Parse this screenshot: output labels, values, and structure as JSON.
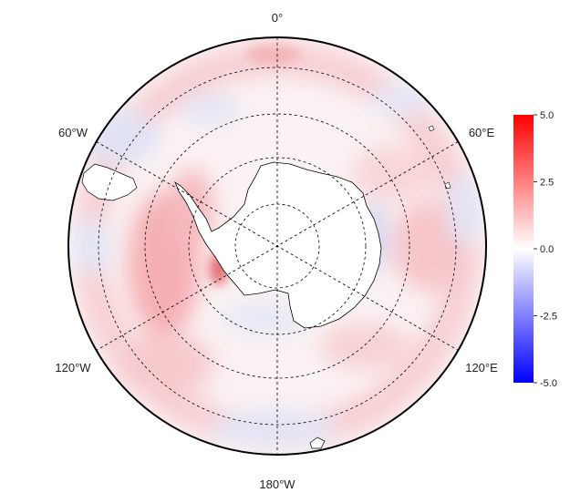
{
  "map": {
    "projection": "south-polar-stereographic",
    "longitude_labels": {
      "top": "0°",
      "upper_left": "60°W",
      "upper_right": "60°E",
      "lower_left": "120°W",
      "lower_right": "120°E",
      "bottom": "180°W"
    },
    "graticule": "dashed",
    "field_colors": {
      "positive": "#ff0000",
      "zero": "#ffffff",
      "negative": "#0000ff"
    }
  },
  "colorbar": {
    "min": -5.0,
    "max": 5.0,
    "ticks": [
      "5.0",
      "2.5",
      "0.0",
      "-2.5",
      "-5.0"
    ],
    "colors": {
      "top": "#ff0000",
      "middle": "#ffffff",
      "bottom": "#0000ff"
    }
  }
}
